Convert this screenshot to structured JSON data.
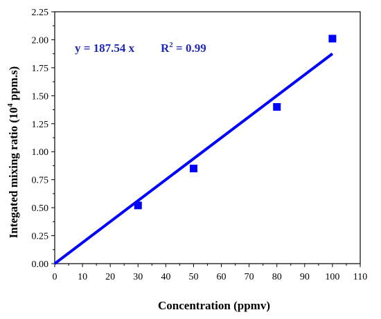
{
  "chart_data": {
    "type": "scatter",
    "xlabel": "Concentration (ppmv)",
    "ylabel": {
      "prefix": "Integated mixing ratio (10",
      "sup": "4",
      "suffix": " ppm.s)"
    },
    "xlim": [
      0,
      110
    ],
    "ylim": [
      0,
      2.25
    ],
    "xticks": [
      "0",
      "10",
      "20",
      "30",
      "40",
      "50",
      "60",
      "70",
      "80",
      "90",
      "100",
      "110"
    ],
    "yticks": [
      "0.00",
      "0.25",
      "0.50",
      "0.75",
      "1.00",
      "1.25",
      "1.50",
      "1.75",
      "2.00",
      "2.25"
    ],
    "grid": false,
    "series": [
      {
        "type": "scatter",
        "x": [
          30,
          50,
          80,
          100
        ],
        "y": [
          0.52,
          0.85,
          1.4,
          2.01
        ]
      },
      {
        "type": "line",
        "x": [
          0,
          100
        ],
        "y": [
          0,
          1.8754
        ]
      }
    ],
    "annotations": {
      "equation": "y = 187.54 x",
      "r2_prefix": "R",
      "r2_sup": "2",
      "r2_suffix": " = 0.99"
    },
    "colors": {
      "series": "#0000ff",
      "fit": "#0000ff",
      "annotation": "#1f28b4"
    }
  }
}
